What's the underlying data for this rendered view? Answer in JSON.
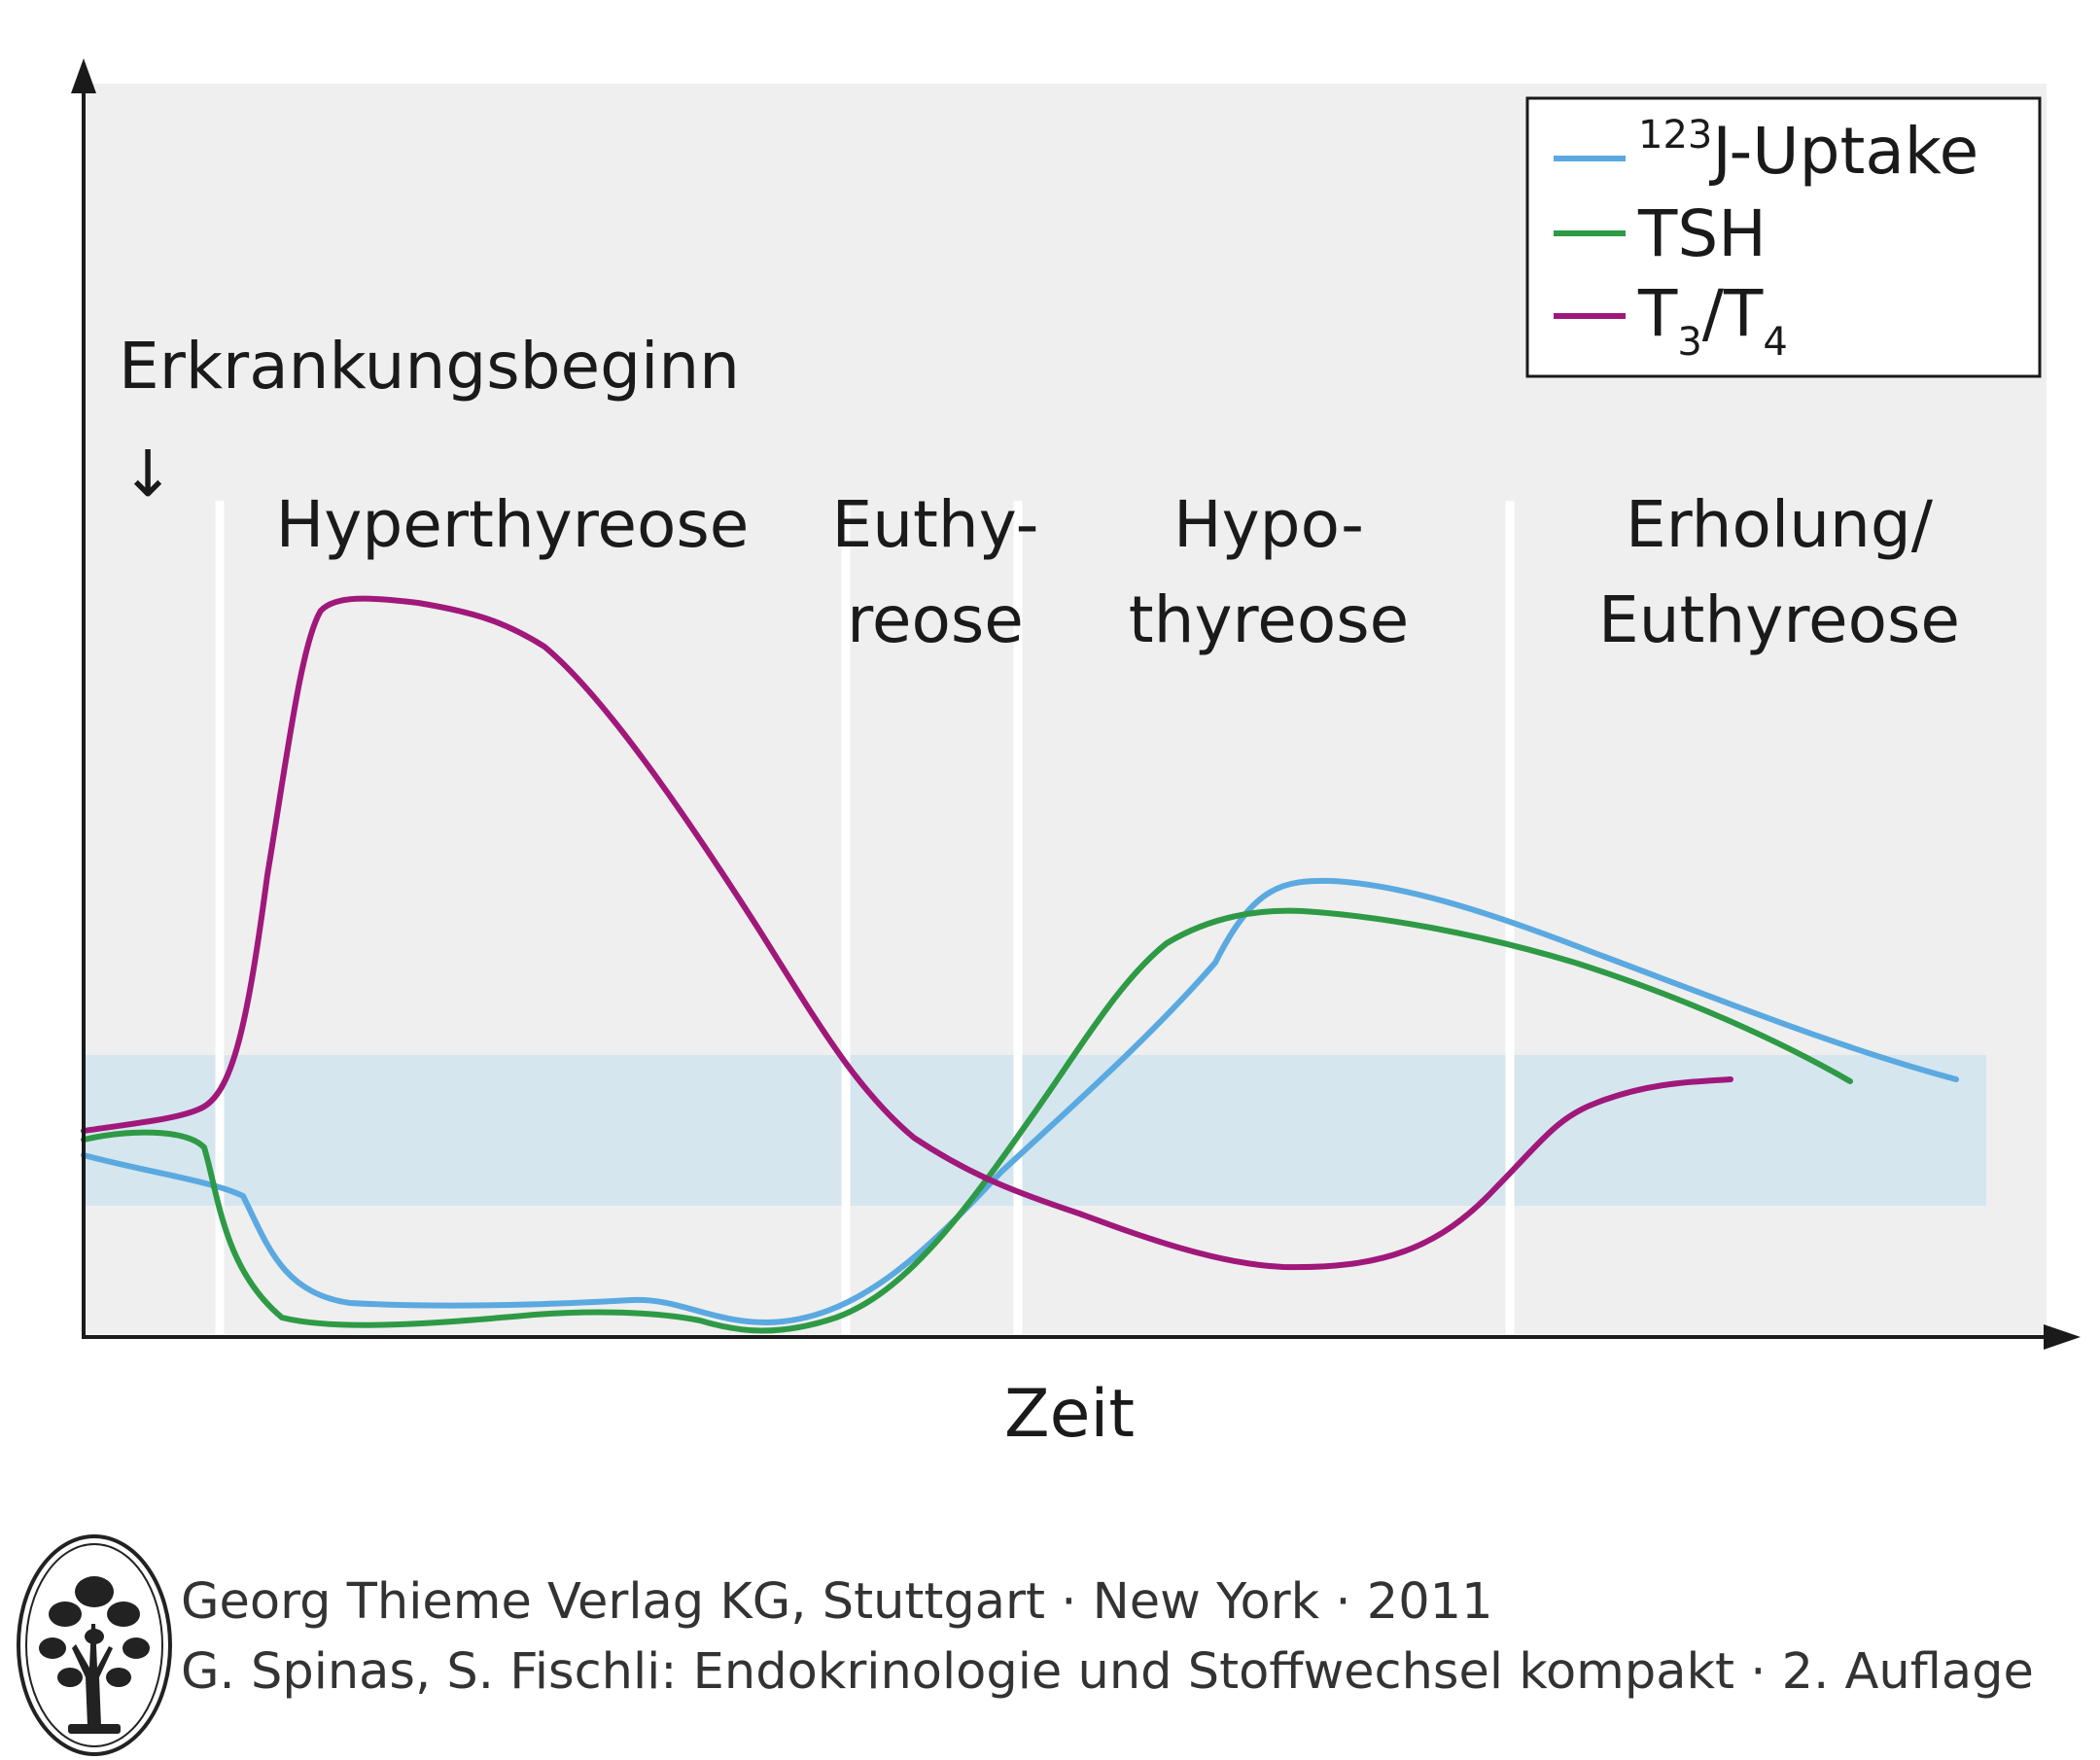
{
  "chart_data": {
    "type": "line",
    "xlabel": "Zeit",
    "ylabel": "",
    "annotation": {
      "text": "Erkrankungsbeginn",
      "arrow": "↓"
    },
    "phases": [
      {
        "line1": "Hyperthyreose",
        "line2": ""
      },
      {
        "line1": "Euthy-",
        "line2": "reose"
      },
      {
        "line1": "Hypo-",
        "line2": "thyreose"
      },
      {
        "line1": "Erholung/",
        "line2": "Euthyreose"
      }
    ],
    "normal_range": {
      "color": "#d5e6ef"
    },
    "legend": {
      "placement": "top-right",
      "entries": [
        {
          "sup": "123",
          "base": "J-Uptake",
          "sub1": "",
          "mid": "",
          "sub2": ""
        },
        {
          "sup": "",
          "base": "TSH",
          "sub1": "",
          "mid": "",
          "sub2": ""
        },
        {
          "sup": "",
          "base": "T",
          "sub1": "3",
          "mid": "/T",
          "sub2": "4"
        }
      ]
    },
    "grid": false,
    "series": [
      {
        "name": "123J-Uptake",
        "color": "#5aa9e0",
        "shape": "x1"
      },
      {
        "name": "TSH",
        "color": "#2e9a45",
        "shape": "x2"
      },
      {
        "name": "T3/T4",
        "color": "#a0187a",
        "shape": "x3"
      }
    ]
  },
  "colors": {
    "plot_background": "#efefef",
    "phase_divider": "#ffffff",
    "axis": "#1a1a1a"
  },
  "credit": {
    "line1": "Georg Thieme Verlag KG, Stuttgart · New York · 2011",
    "line2": "G. Spinas, S. Fischli: Endokrinologie und Stoffwechsel kompakt · 2. Auflage",
    "logo_icon": "tree-logo-icon"
  }
}
